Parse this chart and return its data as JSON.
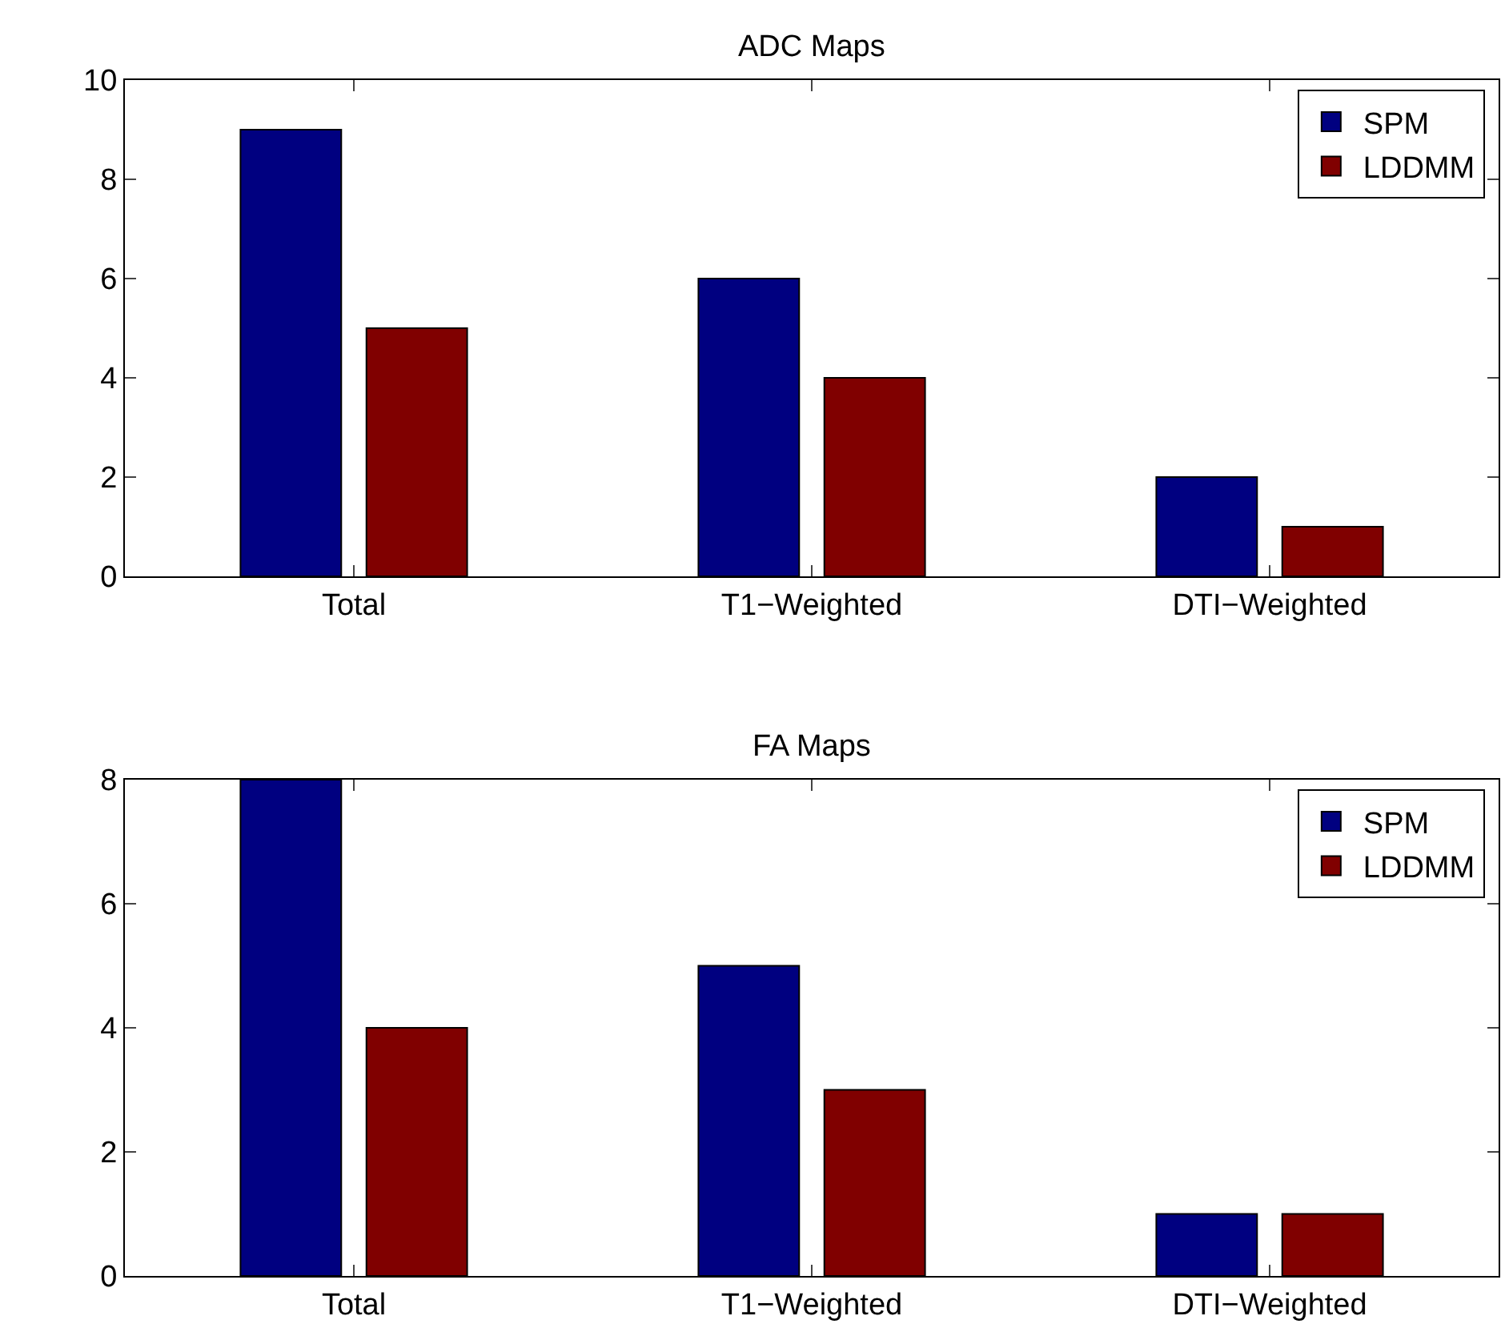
{
  "chart_data": [
    {
      "type": "bar",
      "title": "ADC Maps",
      "categories": [
        "Total",
        "T1−Weighted",
        "DTI−Weighted"
      ],
      "series": [
        {
          "name": "SPM",
          "color": "#000080",
          "values": [
            9,
            6,
            2
          ]
        },
        {
          "name": "LDDMM",
          "color": "#800000",
          "values": [
            5,
            4,
            1
          ]
        }
      ],
      "ylim": [
        0,
        10
      ],
      "yticks": [
        0,
        2,
        4,
        6,
        8,
        10
      ],
      "grid": false,
      "legend": "top right"
    },
    {
      "type": "bar",
      "title": "FA Maps",
      "categories": [
        "Total",
        "T1−Weighted",
        "DTI−Weighted"
      ],
      "series": [
        {
          "name": "SPM",
          "color": "#000080",
          "values": [
            8,
            5,
            1
          ]
        },
        {
          "name": "LDDMM",
          "color": "#800000",
          "values": [
            4,
            3,
            1
          ]
        }
      ],
      "ylim": [
        0,
        8
      ],
      "yticks": [
        0,
        2,
        4,
        6,
        8
      ],
      "grid": false,
      "legend": "top right"
    }
  ]
}
